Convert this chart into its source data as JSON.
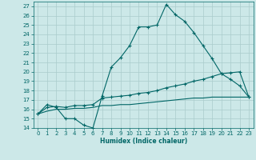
{
  "xlabel": "Humidex (Indice chaleur)",
  "background_color": "#cce8e8",
  "line_color": "#006666",
  "grid_color": "#aacccc",
  "xlim": [
    -0.5,
    23.5
  ],
  "ylim": [
    14,
    27.5
  ],
  "xticks": [
    0,
    1,
    2,
    3,
    4,
    5,
    6,
    7,
    8,
    9,
    10,
    11,
    12,
    13,
    14,
    15,
    16,
    17,
    18,
    19,
    20,
    21,
    22,
    23
  ],
  "yticks": [
    14,
    15,
    16,
    17,
    18,
    19,
    20,
    21,
    22,
    23,
    24,
    25,
    26,
    27
  ],
  "line1_x": [
    0,
    1,
    2,
    3,
    4,
    5,
    6,
    7,
    8,
    9,
    10,
    11,
    12,
    13,
    14,
    15,
    16,
    17,
    18,
    19,
    20,
    21,
    22,
    23
  ],
  "line1_y": [
    15.5,
    16.5,
    16.2,
    15.0,
    15.0,
    14.3,
    14.0,
    17.4,
    20.5,
    21.5,
    22.8,
    24.8,
    24.8,
    25.0,
    27.2,
    26.1,
    25.4,
    24.2,
    22.8,
    21.4,
    19.8,
    19.2,
    18.5,
    17.3
  ],
  "line2_x": [
    0,
    1,
    2,
    3,
    4,
    5,
    6,
    7,
    8,
    9,
    10,
    11,
    12,
    13,
    14,
    15,
    16,
    17,
    18,
    19,
    20,
    21,
    22,
    23
  ],
  "line2_y": [
    15.5,
    16.2,
    16.3,
    16.2,
    16.4,
    16.4,
    16.5,
    17.2,
    17.3,
    17.4,
    17.5,
    17.7,
    17.8,
    18.0,
    18.3,
    18.5,
    18.7,
    19.0,
    19.2,
    19.5,
    19.8,
    19.9,
    20.0,
    17.3
  ],
  "line3_x": [
    0,
    1,
    2,
    3,
    4,
    5,
    6,
    7,
    8,
    9,
    10,
    11,
    12,
    13,
    14,
    15,
    16,
    17,
    18,
    19,
    20,
    21,
    22,
    23
  ],
  "line3_y": [
    15.5,
    15.8,
    16.0,
    16.0,
    16.1,
    16.1,
    16.2,
    16.4,
    16.4,
    16.5,
    16.5,
    16.6,
    16.7,
    16.8,
    16.9,
    17.0,
    17.1,
    17.2,
    17.2,
    17.3,
    17.3,
    17.3,
    17.3,
    17.3
  ],
  "line1_markers": [
    0,
    1,
    2,
    3,
    4,
    5,
    6,
    7,
    8,
    9,
    10,
    11,
    12,
    13,
    14,
    15,
    16,
    17,
    18,
    19,
    20,
    21,
    22,
    23
  ],
  "line2_markers": [
    0,
    1,
    3,
    6,
    9,
    12,
    14,
    15,
    17,
    19,
    20,
    21,
    22,
    23
  ]
}
